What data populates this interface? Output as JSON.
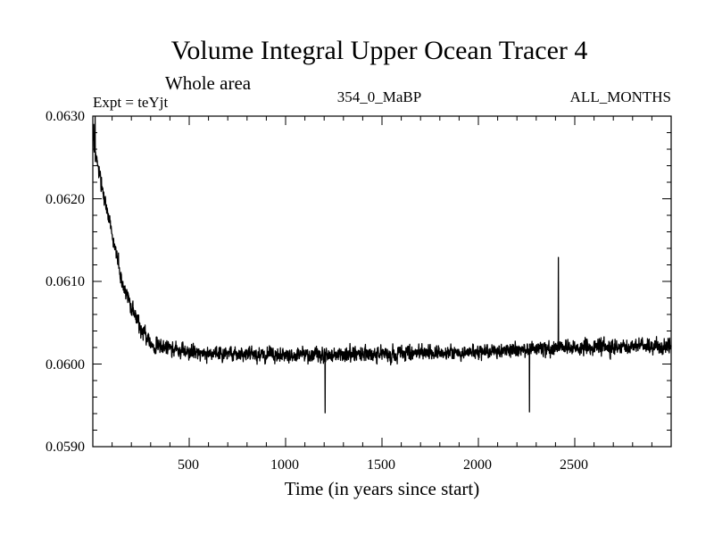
{
  "chart_data": {
    "type": "line",
    "title": "Volume Integral Upper Ocean Tracer 4",
    "subtitle": "Whole area",
    "experiment_label": "Expt = teYjt",
    "period_label": "354_0_MaBP",
    "months_label": "ALL_MONTHS",
    "xlabel": "Time (in years since start)",
    "ylabel": "",
    "xlim": [
      0,
      3000
    ],
    "ylim": [
      0.059,
      0.063
    ],
    "x_ticks": [
      500,
      1000,
      1500,
      2000,
      2500
    ],
    "x_tick_labels": [
      "500",
      "1000",
      "1500",
      "2000",
      "2500"
    ],
    "y_ticks": [
      0.059,
      0.06,
      0.061,
      0.062,
      0.063
    ],
    "y_tick_labels": [
      "0.0590",
      "0.0600",
      "0.0610",
      "0.0620",
      "0.0630"
    ],
    "x_minor_step": 100,
    "y_minor_step": 0.0002,
    "series": [
      {
        "name": "Tracer 4",
        "color": "#000000",
        "x_start": 1,
        "x_step": 1,
        "n_points": 3000,
        "trend_anchors": [
          [
            0,
            0.0627
          ],
          [
            50,
            0.0621
          ],
          [
            100,
            0.0616
          ],
          [
            150,
            0.061
          ],
          [
            200,
            0.0607
          ],
          [
            250,
            0.0604
          ],
          [
            300,
            0.06025
          ],
          [
            400,
            0.06018
          ],
          [
            600,
            0.06013
          ],
          [
            1000,
            0.0601
          ],
          [
            1500,
            0.06012
          ],
          [
            2000,
            0.06015
          ],
          [
            2500,
            0.0602
          ],
          [
            3000,
            0.06022
          ]
        ],
        "noise_amplitude": 0.00026,
        "spikes": [
          [
            2415,
            0.06129
          ],
          [
            1205,
            0.05941
          ],
          [
            2265,
            0.05942
          ],
          [
            5,
            0.0629
          ],
          [
            12,
            0.06305
          ]
        ]
      }
    ]
  }
}
